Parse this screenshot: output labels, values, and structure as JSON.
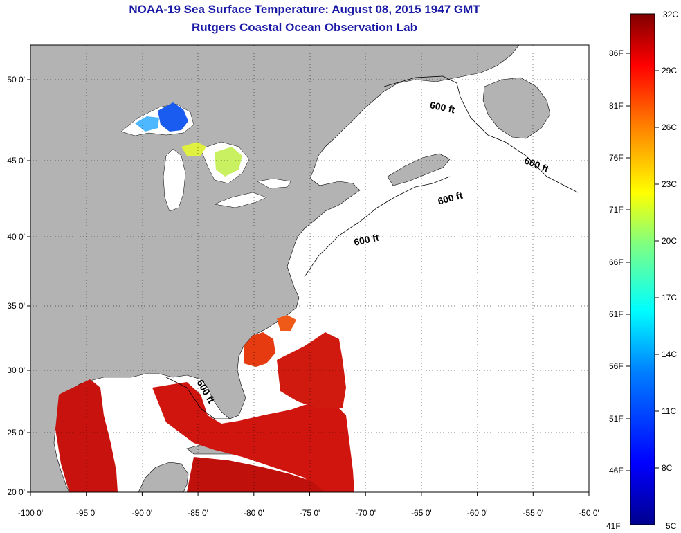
{
  "header": {
    "title": "NOAA-19 Sea Surface Temperature:  August 08, 2015 1947 GMT",
    "subtitle": "Rutgers Coastal Ocean Observation Lab"
  },
  "map": {
    "lon_range": [
      -100,
      -50
    ],
    "lat_range": [
      20,
      52
    ],
    "lon_ticks": [
      "-100 0'",
      "-95 0'",
      "-90 0'",
      "-85 0'",
      "-80 0'",
      "-75 0'",
      "-70 0'",
      "-65 0'",
      "-60 0'",
      "-55 0'",
      "-50 0'"
    ],
    "lat_ticks": [
      "20 0'",
      "25 0'",
      "30 0'",
      "35 0'",
      "40 0'",
      "45 0'",
      "50 0'"
    ],
    "isobath_label": "600 ft",
    "isobath_count": 5,
    "land_color": "#b3b3b3",
    "no_data_color": "#ffffff"
  },
  "colorbar": {
    "celsius_top": "32C",
    "celsius_bottom": "5C",
    "fahrenheit_top": "",
    "fahrenheit_bottom": "41F",
    "celsius_ticks": [
      "29C",
      "26C",
      "23C",
      "20C",
      "17C",
      "14C",
      "11C",
      "8C"
    ],
    "fahrenheit_ticks": [
      "86F",
      "81F",
      "76F",
      "71F",
      "66F",
      "61F",
      "56F",
      "51F",
      "46F"
    ],
    "colors": [
      "#00008f",
      "#0000ff",
      "#0080ff",
      "#00ffff",
      "#80ff80",
      "#ffff00",
      "#ff8000",
      "#ff0000",
      "#800000"
    ]
  }
}
